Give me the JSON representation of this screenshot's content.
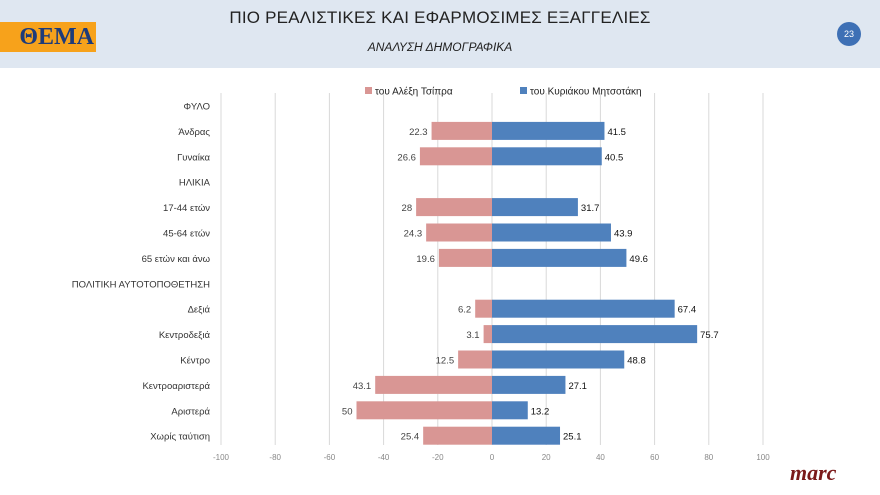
{
  "header": {
    "title": "ΠΙΟ ΡΕΑΛΙΣΤΙΚΕΣ ΚΑΙ ΕΦΑΡΜΟΣΙΜΕΣ ΕΞΑΓΓΕΛΙΕΣ",
    "subtitle": "ΑΝΑΛΥΣΗ ΔΗΜΟΓΡΑΦΙΚΑ",
    "logo": "ΘΕΜΑ",
    "page_number": "23"
  },
  "footer": {
    "brand": "marc"
  },
  "chart_data": {
    "type": "bar",
    "orientation": "horizontal-diverging",
    "categories": [
      "ΦΥΛΟ",
      "Άνδρας",
      "Γυναίκα",
      "ΗΛΙΚΙΑ",
      "17-44 ετών",
      "45-64 ετών",
      "65 ετών και άνω",
      "ΠΟΛΙΤΙΚΗ ΑΥΤΟΤΟΠΟΘΕΤΗΣΗ",
      "Δεξιά",
      "Κεντροδεξιά",
      "Κέντρο",
      "Κεντροαριστερά",
      "Αριστερά",
      "Χωρίς ταύτιση"
    ],
    "series": [
      {
        "name": "του Αλέξη Τσίπρα",
        "color": "#d99694",
        "direction": "left",
        "values": [
          null,
          22.3,
          26.6,
          null,
          28,
          24.3,
          19.6,
          null,
          6.2,
          3.1,
          12.5,
          43.1,
          50,
          25.4
        ]
      },
      {
        "name": "του Κυριάκου Μητσοτάκη",
        "color": "#4f81bd",
        "direction": "right",
        "values": [
          null,
          41.5,
          40.5,
          null,
          31.7,
          43.9,
          49.6,
          null,
          67.4,
          75.7,
          48.8,
          27.1,
          13.2,
          25.1
        ]
      }
    ],
    "xlim": [
      -100,
      100
    ],
    "xticks": [
      "-100",
      "-80",
      "-60",
      "-40",
      "-20",
      "0",
      "20",
      "40",
      "60",
      "80",
      "100"
    ],
    "grid": true,
    "legend": "top"
  }
}
